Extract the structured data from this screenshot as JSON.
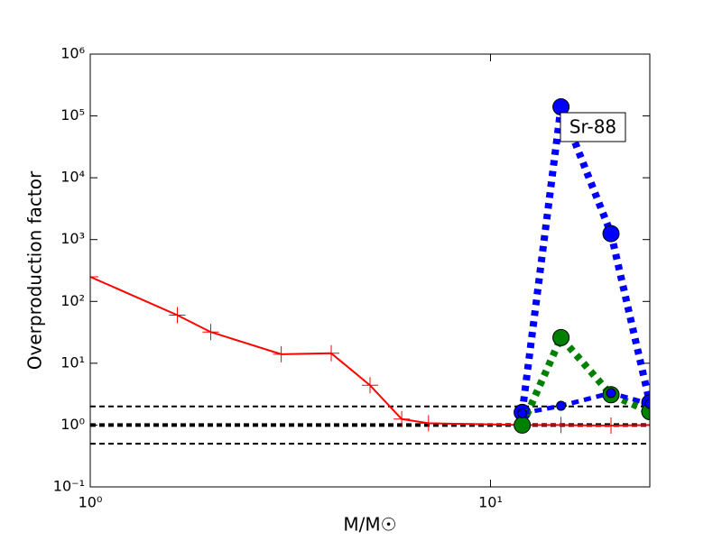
{
  "chart_data": {
    "type": "line",
    "xlabel": "M/M☉",
    "ylabel": "Overproduction factor",
    "xscale": "log",
    "yscale": "log",
    "xlim": [
      1,
      25
    ],
    "ylim": [
      0.1,
      1000000
    ],
    "xticks": [
      {
        "value": 1,
        "label": "10⁰"
      },
      {
        "value": 10,
        "label": "10¹"
      }
    ],
    "yticks": [
      {
        "value": 0.1,
        "label": "10⁻¹"
      },
      {
        "value": 1,
        "label": "10⁰"
      },
      {
        "value": 10,
        "label": "10¹"
      },
      {
        "value": 100,
        "label": "10²"
      },
      {
        "value": 1000,
        "label": "10³"
      },
      {
        "value": 10000,
        "label": "10⁴"
      },
      {
        "value": 100000,
        "label": "10⁵"
      },
      {
        "value": 1000000,
        "label": "10⁶"
      }
    ],
    "reference_lines": [
      {
        "value": 2,
        "color": "#000000",
        "width": 2
      },
      {
        "value": 1,
        "color": "#000000",
        "width": 4
      },
      {
        "value": 0.5,
        "color": "#000000",
        "width": 2
      }
    ],
    "series": [
      {
        "color": "#ff0000",
        "style": "solid",
        "marker": "+",
        "x": [
          1,
          1.65,
          2,
          3,
          4,
          5,
          6,
          7,
          12,
          15,
          20,
          25
        ],
        "values": [
          250,
          60,
          32,
          14,
          14.5,
          4.4,
          1.25,
          1.07,
          1.0,
          1.0,
          0.98,
          1.0
        ]
      },
      {
        "color": "#0000ff",
        "style": "dotted",
        "marker": "o",
        "x": [
          12,
          15,
          20,
          25
        ],
        "values": [
          1.6,
          140000,
          1250,
          2.3
        ]
      },
      {
        "color": "#008000",
        "style": "dotted",
        "marker": "o",
        "x": [
          12,
          15,
          20,
          25
        ],
        "values": [
          1.0,
          26,
          3.1,
          1.65
        ]
      },
      {
        "color": "#0000ff",
        "style": "dashed",
        "marker": "o-small",
        "x": [
          12,
          15,
          20,
          25
        ],
        "values": [
          1.55,
          2.05,
          3.3,
          2.2
        ]
      }
    ],
    "annotation": "Sr-88"
  }
}
